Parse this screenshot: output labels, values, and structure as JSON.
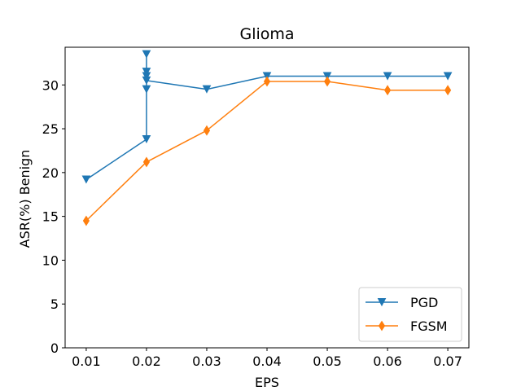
{
  "chart_data": {
    "type": "line",
    "title": "Glioma",
    "xlabel": "EPS",
    "ylabel": "ASR(%) Benign",
    "xlim": [
      0.0065,
      0.0735
    ],
    "ylim": [
      0,
      34.3
    ],
    "x_ticks": [
      "0.01",
      "0.02",
      "0.03",
      "0.04",
      "0.05",
      "0.06",
      "0.07"
    ],
    "x_tick_values": [
      0.01,
      0.02,
      0.03,
      0.04,
      0.05,
      0.06,
      0.07
    ],
    "y_ticks": [
      "0",
      "5",
      "10",
      "15",
      "20",
      "25",
      "30"
    ],
    "y_tick_values": [
      0,
      5,
      10,
      15,
      20,
      25,
      30
    ],
    "grid": false,
    "legend_position": "lower right",
    "series": [
      {
        "name": "PGD",
        "color": "#1f77b4",
        "marker": "triangle-down",
        "x": [
          0.01,
          0.02,
          0.02,
          0.02,
          0.02,
          0.02,
          0.02,
          0.03,
          0.04,
          0.05,
          0.06,
          0.07
        ],
        "y": [
          19.2,
          23.8,
          29.5,
          33.5,
          31.5,
          31.0,
          30.5,
          29.5,
          31.0,
          31.0,
          31.0,
          31.0
        ]
      },
      {
        "name": "FGSM",
        "color": "#ff7f0e",
        "marker": "thin-diamond",
        "x": [
          0.01,
          0.02,
          0.03,
          0.04,
          0.05,
          0.06,
          0.07
        ],
        "y": [
          14.5,
          21.2,
          24.8,
          30.4,
          30.4,
          29.4,
          29.4
        ]
      }
    ]
  }
}
